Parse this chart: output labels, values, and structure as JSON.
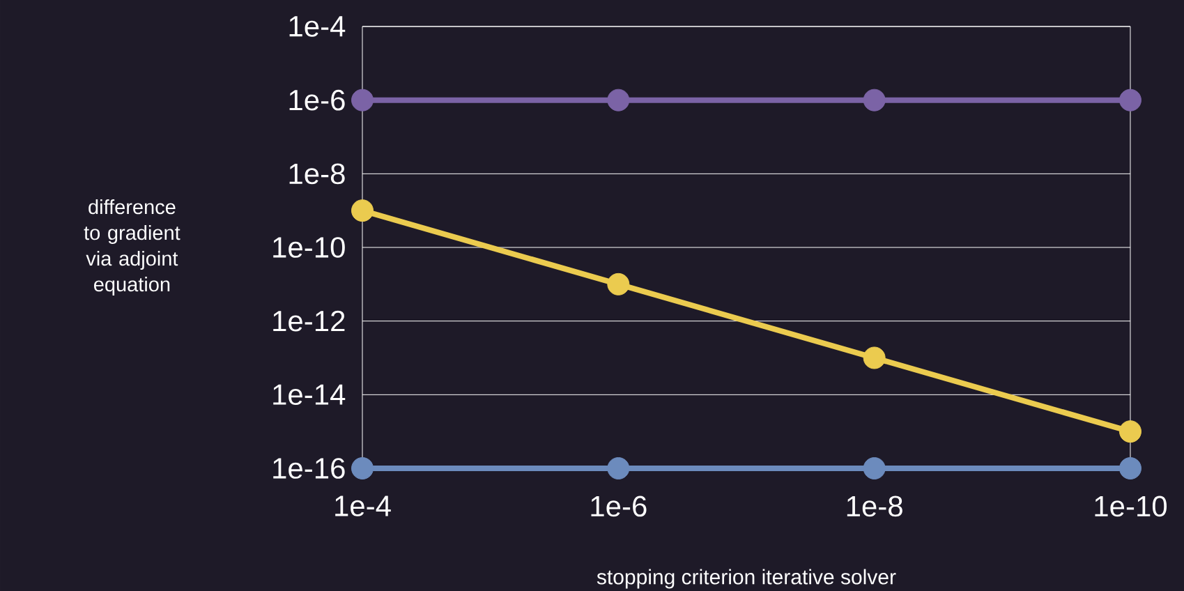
{
  "chart_data": {
    "type": "line",
    "xlabel": "stopping criterion iterative solver",
    "ylabel": "difference to gradient via adjoint equation",
    "categories": [
      "1e-4",
      "1e-6",
      "1e-8",
      "1e-10"
    ],
    "series": [
      {
        "color": "#7b63a6",
        "values": [
          1e-06,
          1e-06,
          1e-06,
          1e-06
        ]
      },
      {
        "color": "#ebcb4f",
        "values": [
          1e-09,
          1e-11,
          1e-13,
          1e-15
        ]
      },
      {
        "color": "#6c8bbd",
        "values": [
          1e-16,
          1e-16,
          1e-16,
          1e-16
        ]
      }
    ],
    "log": "y",
    "ylim": [
      1e-16,
      0.0001
    ],
    "yticks": [
      {
        "value": 1e-16,
        "label": "1e-16"
      },
      {
        "value": 1e-14,
        "label": "1e-14"
      },
      {
        "value": 1e-12,
        "label": "1e-12"
      },
      {
        "value": 1e-10,
        "label": "1e-10"
      },
      {
        "value": 1e-08,
        "label": "1e-8"
      },
      {
        "value": 1e-06,
        "label": "1e-6"
      },
      {
        "value": 0.0001,
        "label": "1e-4"
      }
    ],
    "grid": "y",
    "marker": "circle",
    "line_style": "solid"
  }
}
